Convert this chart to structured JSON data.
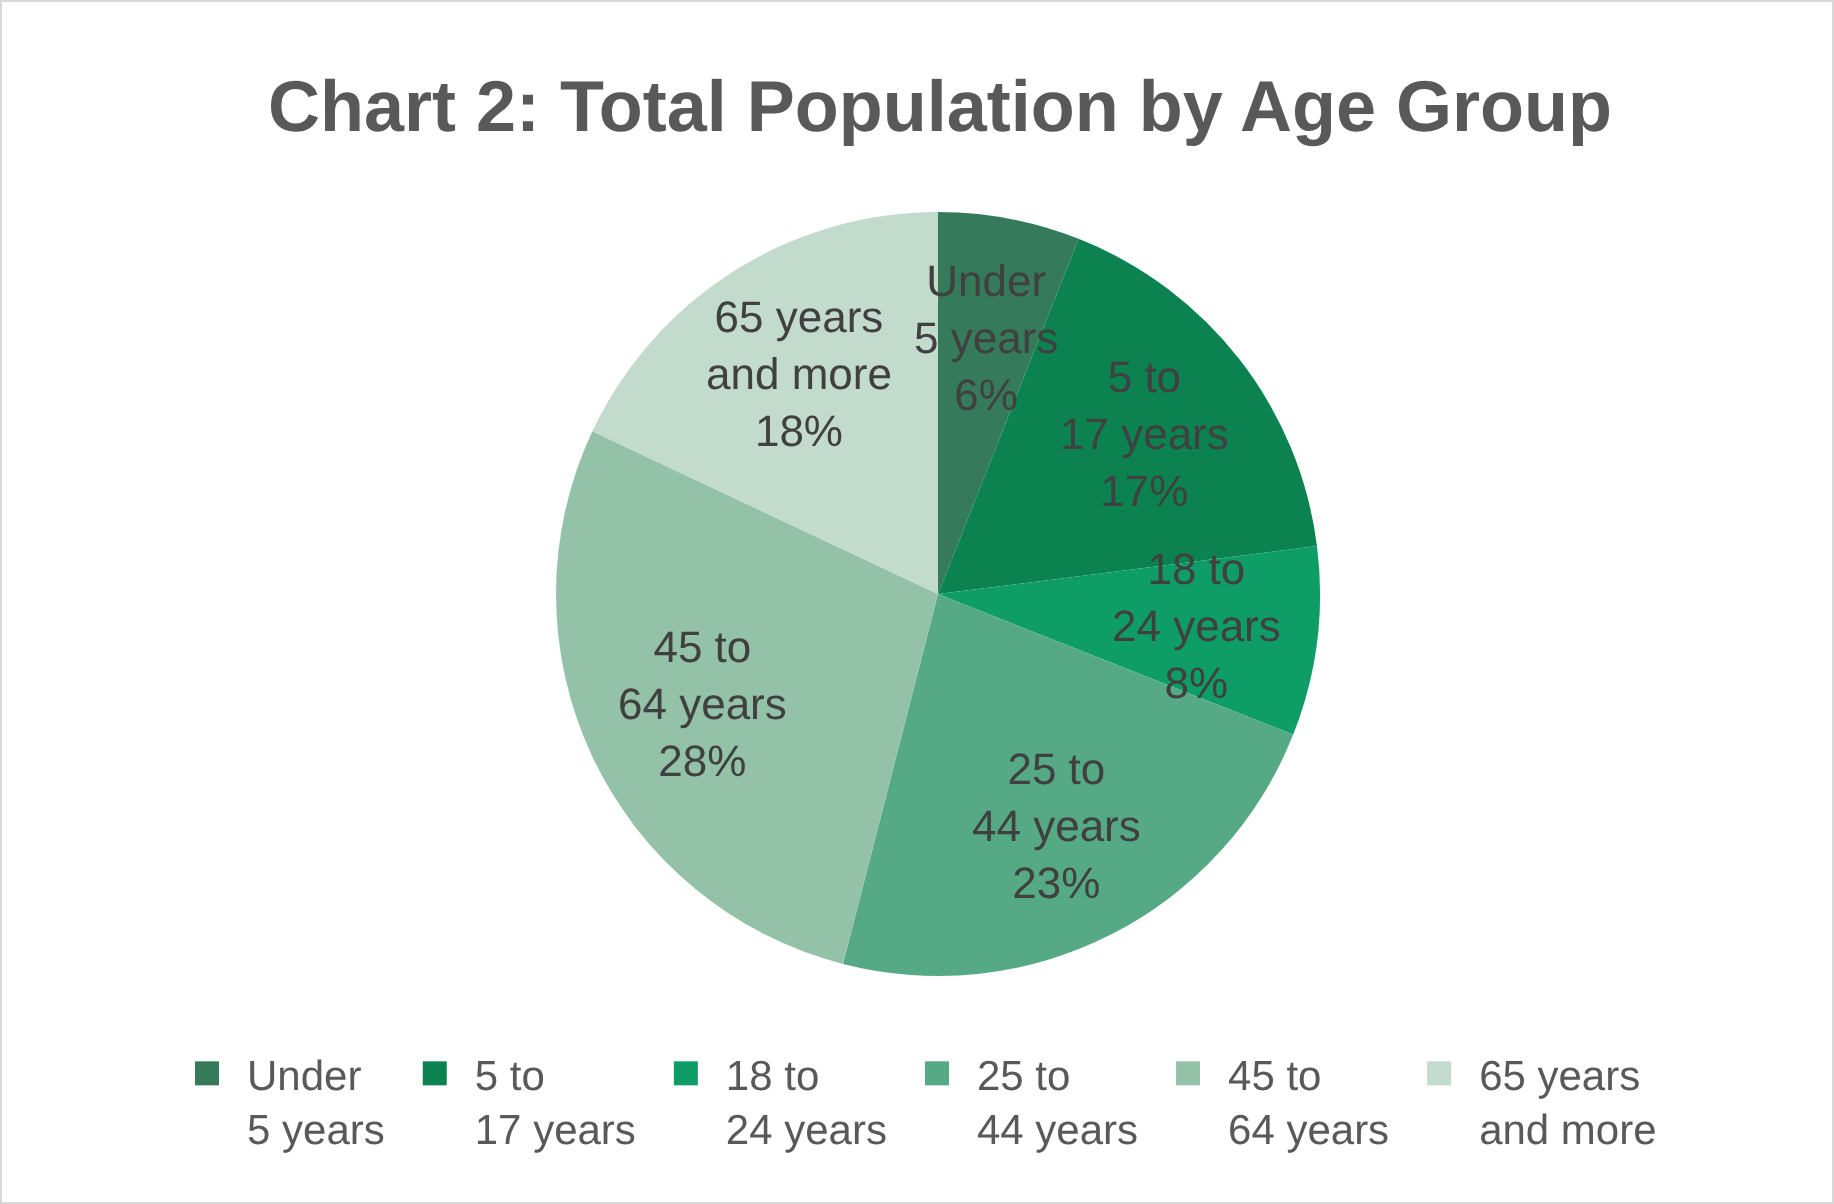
{
  "chart_data": {
    "type": "pie",
    "title": "Chart 2: Total Population by Age Group",
    "categories": [
      "Under 5 years",
      "5 to 17 years",
      "18 to 24 years",
      "25 to 44 years",
      "45 to 64 years",
      "65 years and more"
    ],
    "values": [
      6,
      17,
      8,
      23,
      28,
      18
    ],
    "value_labels": [
      "6%",
      "17%",
      "8%",
      "23%",
      "28%",
      "18%"
    ],
    "colors": [
      "#357b5b",
      "#0b8250",
      "#0e9d66",
      "#55a984",
      "#93c2a9",
      "#c3dbcd"
    ],
    "legend": "bottom"
  }
}
